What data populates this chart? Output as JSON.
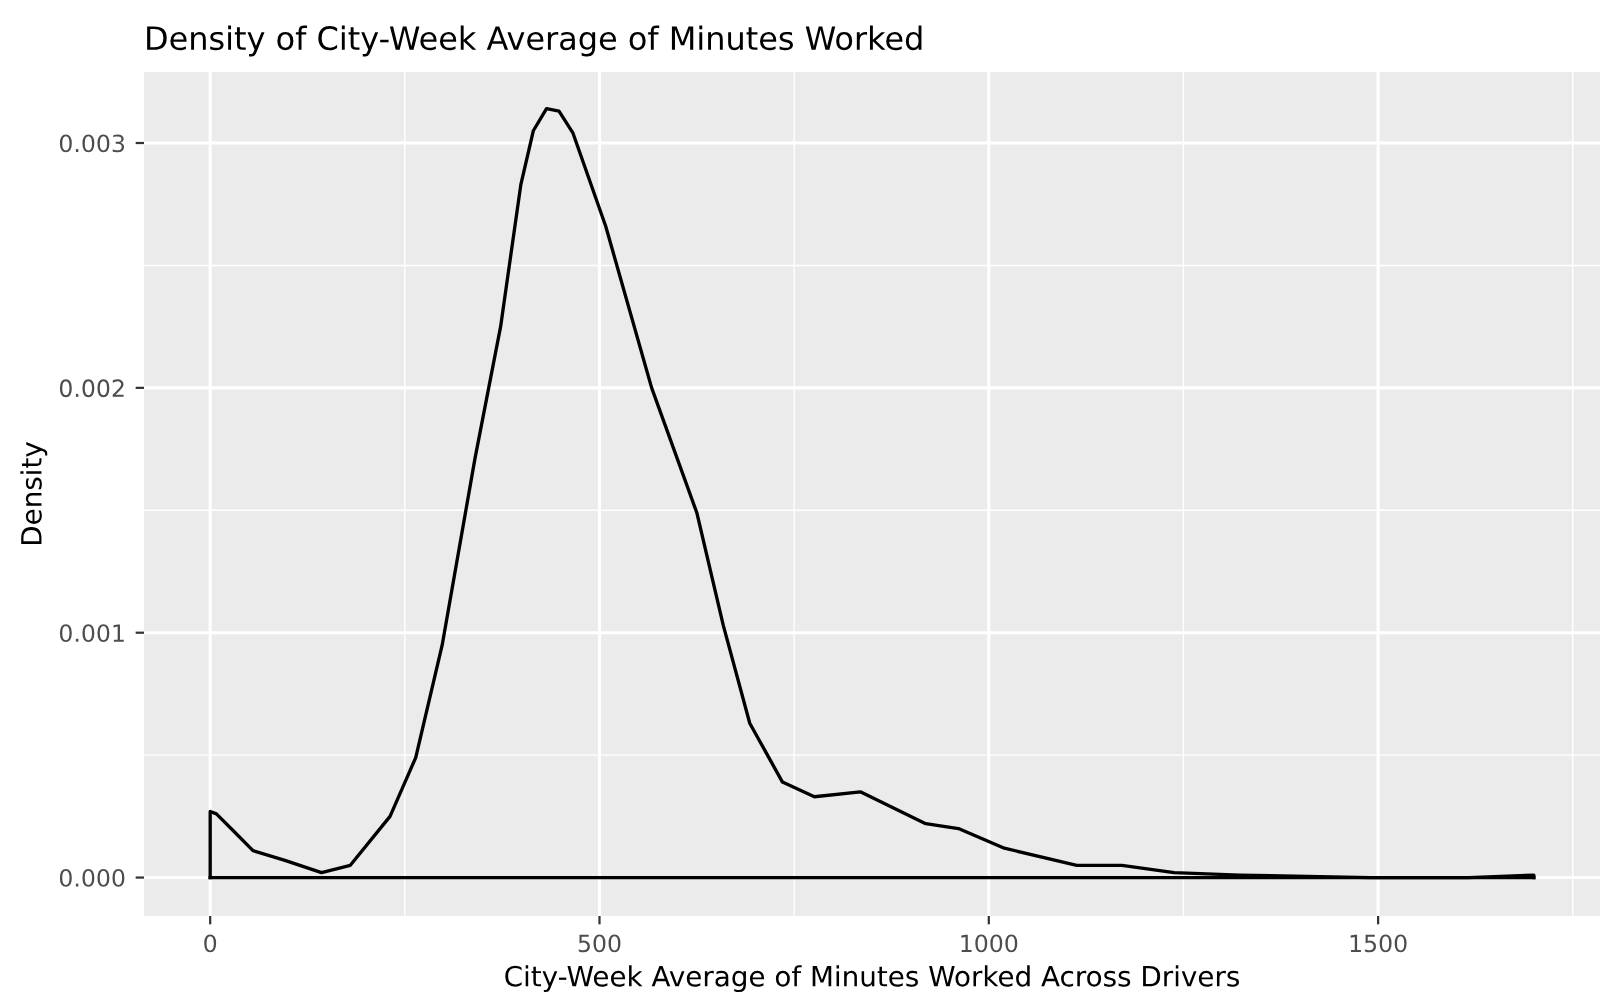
{
  "chart_data": {
    "type": "line",
    "title": "Density of City-Week Average of Minutes Worked",
    "xlabel": "City-Week Average of Minutes Worked Across Drivers",
    "ylabel": "Density",
    "x": [
      0,
      0,
      8,
      30,
      55,
      96,
      143,
      180,
      231,
      264,
      298,
      340,
      373,
      399,
      415,
      432,
      448,
      466,
      508,
      567,
      625,
      659,
      693,
      735,
      776,
      835,
      919,
      961,
      1020,
      1113,
      1171,
      1238,
      1322,
      1490,
      1616,
      1700,
      1700
    ],
    "series": [
      {
        "color": "#000000",
        "values": [
          0,
          0.00027,
          0.00026,
          0.00019,
          0.00011,
          7e-05,
          2e-05,
          5e-05,
          0.00025,
          0.00049,
          0.00095,
          0.00171,
          0.00225,
          0.00283,
          0.00305,
          0.00314,
          0.00313,
          0.00304,
          0.00266,
          0.002,
          0.00149,
          0.00103,
          0.00063,
          0.00039,
          0.00033,
          0.00035,
          0.00022,
          0.0002,
          0.00012,
          5e-05,
          5e-05,
          2e-05,
          1e-05,
          0,
          0,
          1e-05,
          0
        ]
      },
      {
        "color": "#000000",
        "x": [
          0,
          1700
        ],
        "values": [
          0,
          0
        ]
      }
    ],
    "xlim": [
      -85,
      1785
    ],
    "ylim": [
      -0.000157,
      0.00329
    ],
    "xticks": [
      0,
      {
        "value": 250,
        "label": null
      },
      500,
      {
        "value": 750,
        "label": null
      },
      1000,
      {
        "value": 1250,
        "label": null
      },
      1500,
      {
        "value": 1750,
        "label": null
      }
    ],
    "yticks": [
      {
        "value": 0,
        "label": "0.000"
      },
      {
        "value": 0.0005,
        "label": null
      },
      {
        "value": 0.001,
        "label": "0.001"
      },
      {
        "value": 0.0015,
        "label": null
      },
      {
        "value": 0.002,
        "label": "0.002"
      },
      {
        "value": 0.0025,
        "label": null
      },
      {
        "value": 0.003,
        "label": "0.003"
      }
    ],
    "grid": true
  }
}
